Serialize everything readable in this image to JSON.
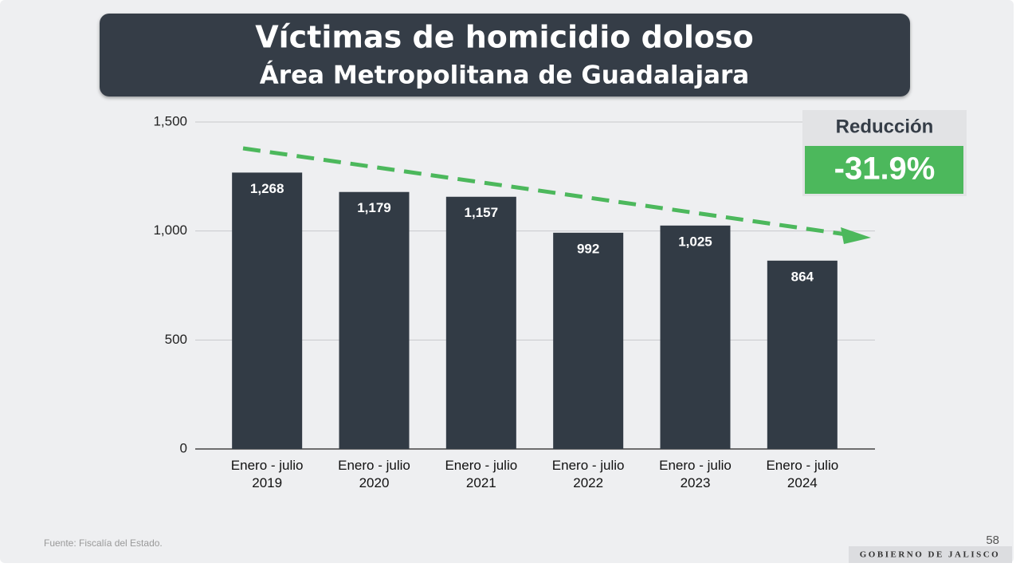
{
  "chart_data": {
    "type": "bar",
    "title": "Víctimas de homicidio doloso",
    "subtitle": "Área Metropolitana de Guadalajara",
    "categories": [
      "Enero - julio 2019",
      "Enero - julio 2020",
      "Enero - julio 2021",
      "Enero - julio 2022",
      "Enero - julio 2023",
      "Enero - julio 2024"
    ],
    "values": [
      1268,
      1179,
      1157,
      992,
      1025,
      864
    ],
    "value_labels": [
      "1,268",
      "1,179",
      "1,157",
      "992",
      "1,025",
      "864"
    ],
    "color": "#323b45",
    "ylim": [
      0,
      1500
    ],
    "yticks": [
      0,
      500,
      {
        "value": 1000,
        "label": "1,000"
      },
      {
        "value": 1500,
        "label": "1,500"
      }
    ],
    "grid": true,
    "annotation": {
      "label": "Reducción",
      "value": "-31.9%"
    }
  },
  "footer": {
    "source": "Fuente: Fiscalía del Estado.",
    "page": "58",
    "brand": "GOBIERNO DE JALISCO"
  }
}
